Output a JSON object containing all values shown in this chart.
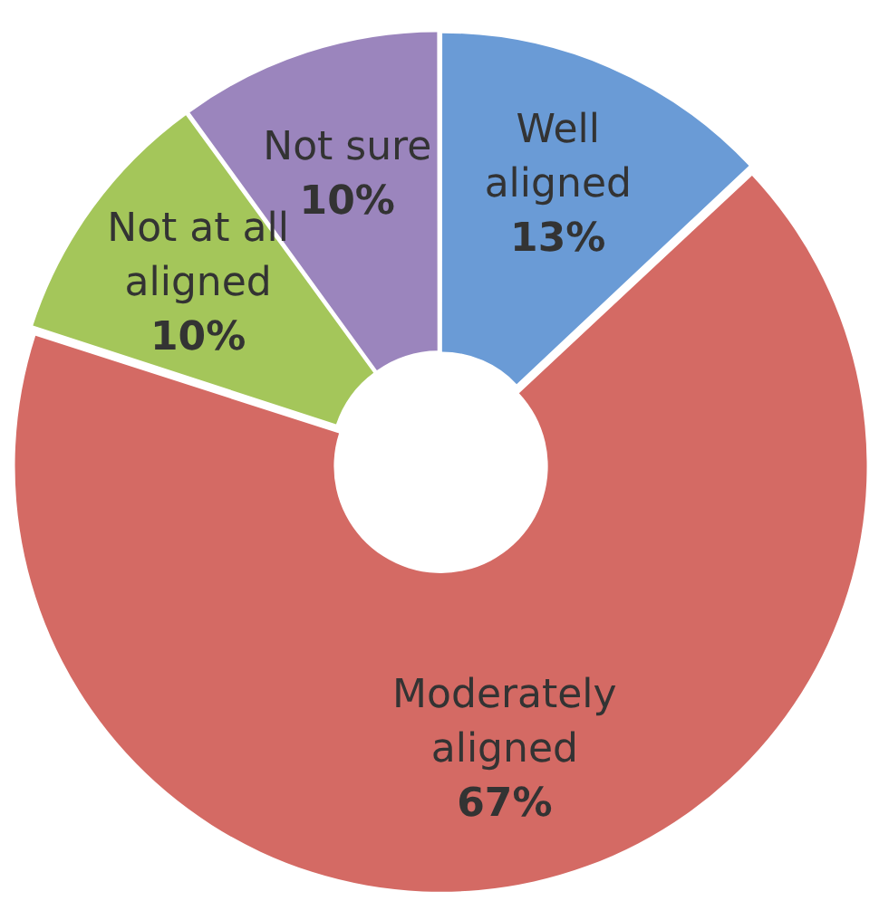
{
  "chart_data": {
    "type": "donut",
    "categories": [
      "Well aligned",
      "Moderately aligned",
      "Not at all aligned",
      "Not sure"
    ],
    "values": [
      13,
      67,
      10,
      10
    ],
    "colors": [
      "#6a9bd6",
      "#d46a64",
      "#a4c65a",
      "#9b85bd"
    ],
    "value_labels": [
      "13%",
      "67%",
      "10%",
      "10%"
    ],
    "legend": false
  }
}
